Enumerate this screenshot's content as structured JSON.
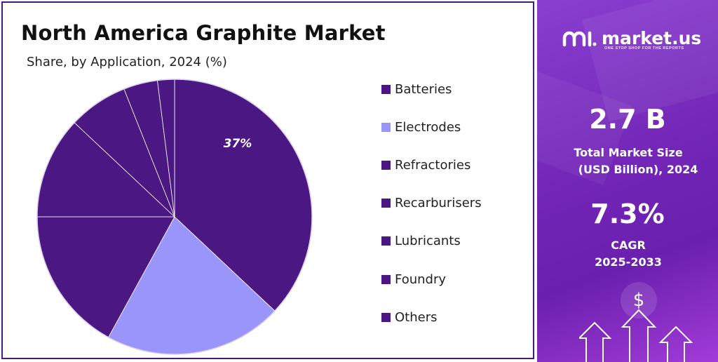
{
  "chart_data": {
    "type": "pie",
    "title": "North America Graphite Market",
    "subtitle": "Share, by Application, 2024 (%)",
    "categories": [
      "Batteries",
      "Electrodes",
      "Refractories",
      "Recarburisers",
      "Lubricants",
      "Foundry",
      "Others"
    ],
    "values": [
      37,
      21,
      17,
      12,
      7,
      4,
      2
    ],
    "colors": [
      "#4b1782",
      "#9a95fa",
      "#4b1782",
      "#4b1782",
      "#4b1782",
      "#4b1782",
      "#4b1782"
    ],
    "data_labels": [
      "37%",
      "",
      "",
      "",
      "",
      "",
      ""
    ],
    "legend_position": "right"
  },
  "panel": {
    "brand": "market.us",
    "tagline": "ONE STOP SHOP FOR THE REPORTS",
    "market_size_value": "2.7 B",
    "market_size_label_1": "Total Market Size",
    "market_size_label_2": "(USD Billion), 2024",
    "cagr_value": "7.3%",
    "cagr_label": "CAGR",
    "cagr_period": "2025-2033",
    "dollar_symbol": "$"
  },
  "colors": {
    "frame": "#4a1a7a",
    "panel_bg": "#7326b8"
  }
}
